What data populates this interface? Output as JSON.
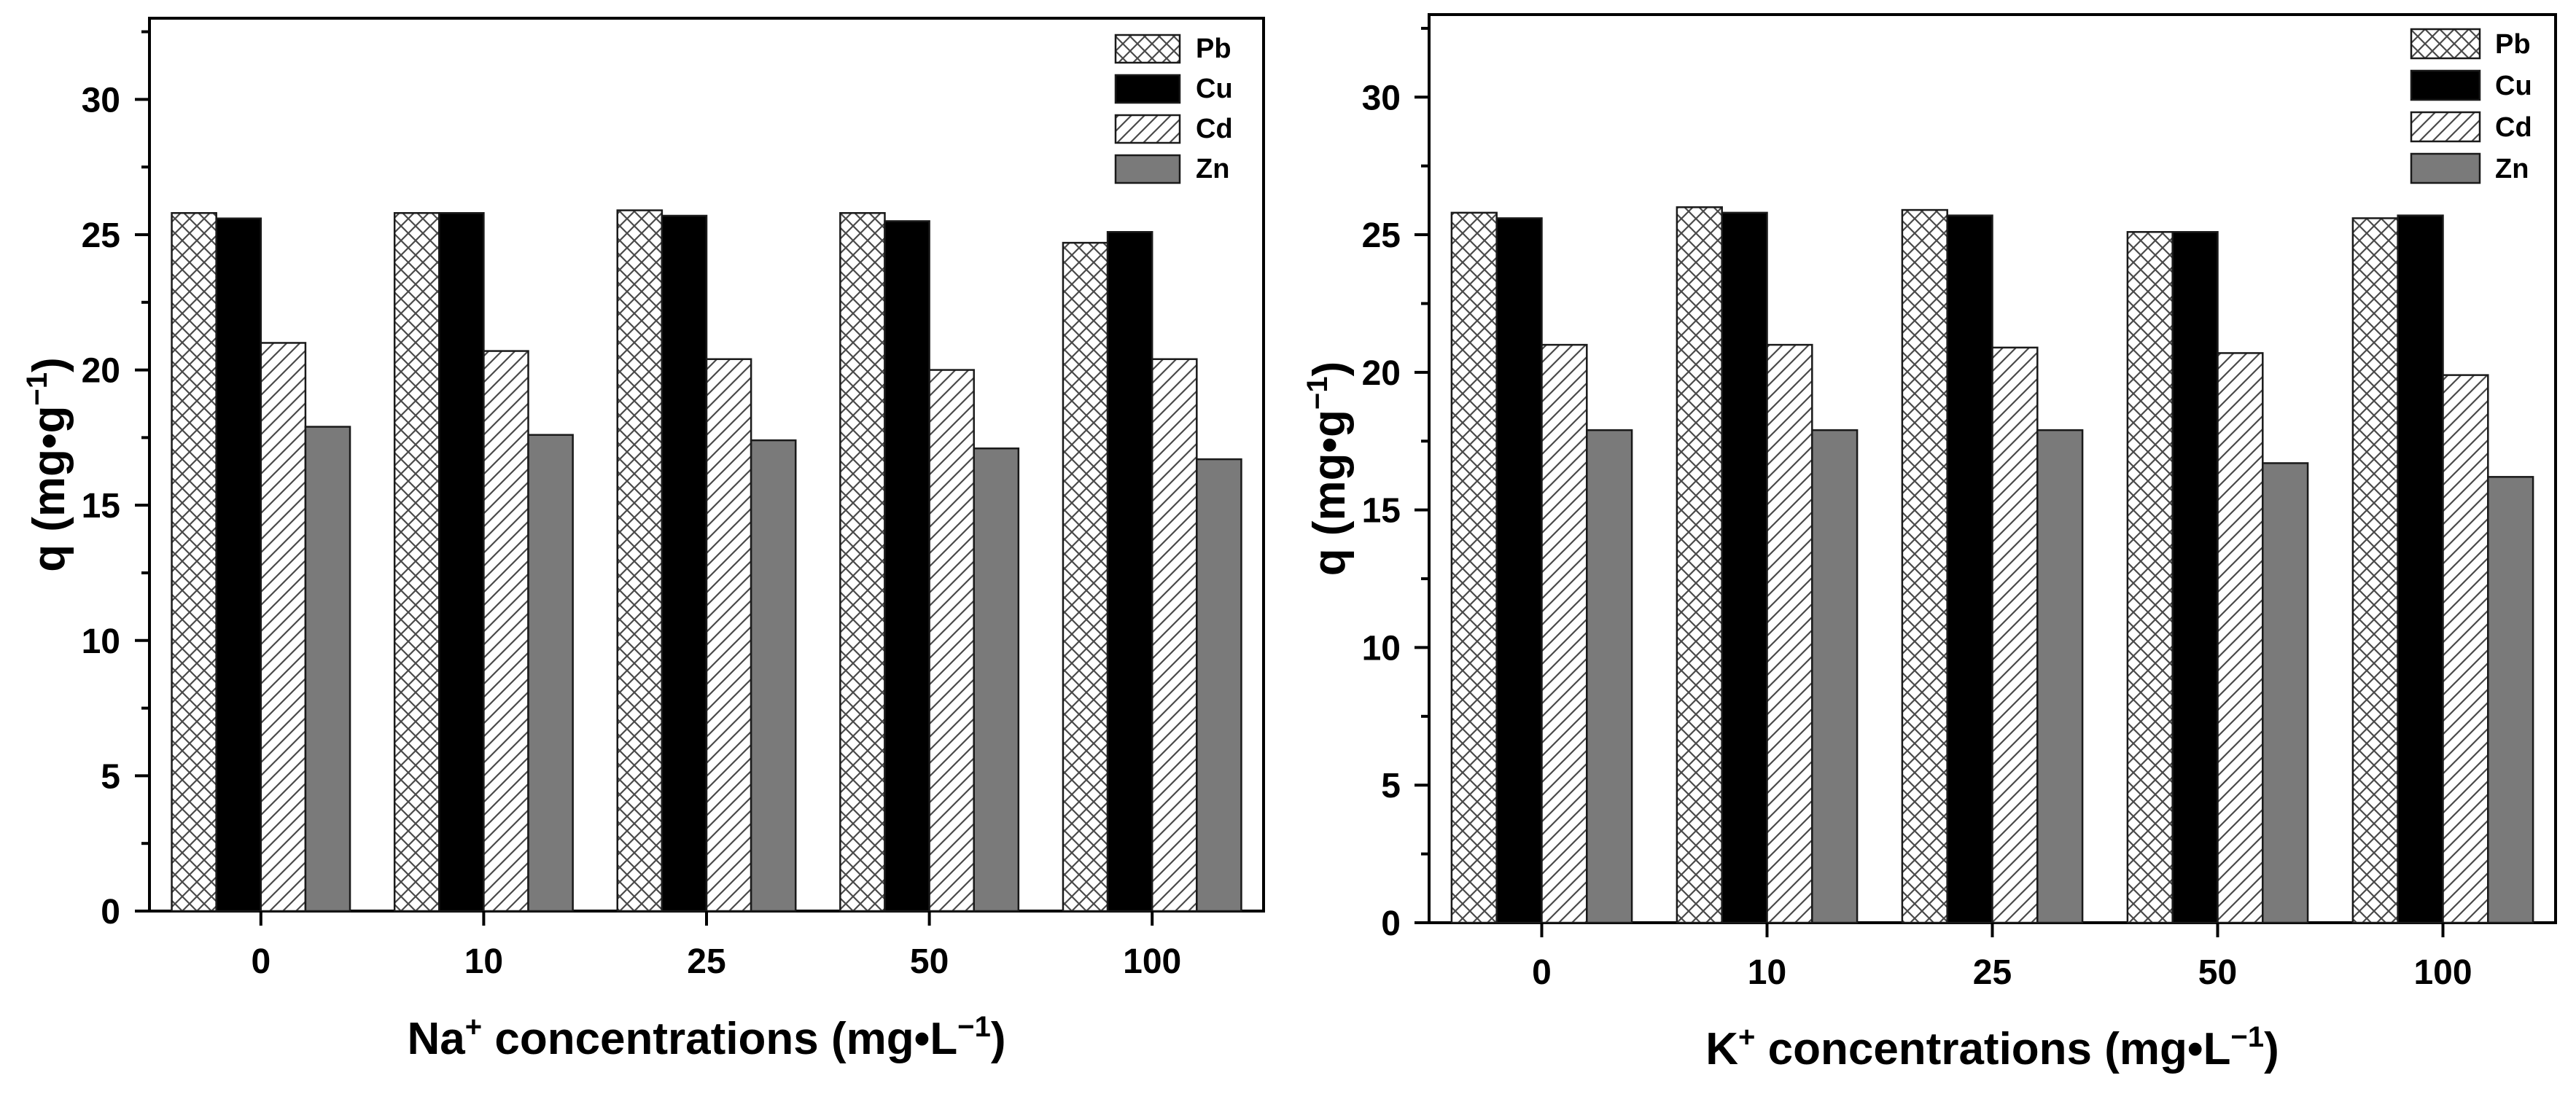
{
  "chart_data": [
    {
      "type": "bar",
      "xlabel_base": "Na",
      "xlabel_sup": "+",
      "xlabel_rest": " concentrations (mg•L",
      "xlabel_rest_sup": "−1",
      "xlabel_close": ")",
      "ylabel_main": "q (mg•g",
      "ylabel_sup": "−1",
      "ylabel_close": ")",
      "categories": [
        "0",
        "10",
        "25",
        "50",
        "100"
      ],
      "ylim": [
        0,
        33
      ],
      "yticks": [
        "0",
        "5",
        "10",
        "15",
        "20",
        "25",
        "30"
      ],
      "legend_position": "top-right",
      "series": [
        {
          "name": "Pb",
          "pattern": "crosshatch",
          "values": [
            25.8,
            25.8,
            25.9,
            25.8,
            24.7
          ]
        },
        {
          "name": "Cu",
          "pattern": "solid-black",
          "values": [
            25.6,
            25.8,
            25.7,
            25.5,
            25.1
          ]
        },
        {
          "name": "Cd",
          "pattern": "diagonal",
          "values": [
            21.0,
            20.7,
            20.4,
            20.0,
            20.4
          ]
        },
        {
          "name": "Zn",
          "pattern": "solid-gray",
          "values": [
            17.9,
            17.6,
            17.4,
            17.1,
            16.7
          ]
        }
      ]
    },
    {
      "type": "bar",
      "xlabel_base": "K",
      "xlabel_sup": "+",
      "xlabel_rest": " concentrations (mg•L",
      "xlabel_rest_sup": "−1",
      "xlabel_close": ")",
      "ylabel_main": "q (mg•g",
      "ylabel_sup": "−1",
      "ylabel_close": ")",
      "categories": [
        "0",
        "10",
        "25",
        "50",
        "100"
      ],
      "ylim": [
        0,
        33
      ],
      "yticks": [
        "0",
        "5",
        "10",
        "15",
        "20",
        "25",
        "30"
      ],
      "legend_position": "top-right",
      "series": [
        {
          "name": "Pb",
          "pattern": "crosshatch",
          "values": [
            25.8,
            26.0,
            25.9,
            25.1,
            25.6
          ]
        },
        {
          "name": "Cu",
          "pattern": "solid-black",
          "values": [
            25.6,
            25.8,
            25.7,
            25.1,
            25.7
          ]
        },
        {
          "name": "Cd",
          "pattern": "diagonal",
          "values": [
            21.0,
            21.0,
            20.9,
            20.7,
            19.9
          ]
        },
        {
          "name": "Zn",
          "pattern": "solid-gray",
          "values": [
            17.9,
            17.9,
            17.9,
            16.7,
            16.2
          ]
        }
      ]
    }
  ],
  "colors": {
    "axis": "#000000",
    "solid_black": "#000000",
    "solid_gray": "#7a7a7a",
    "pattern_stroke": "#4a4a4a",
    "bar_outline": "#1a1a1a"
  }
}
